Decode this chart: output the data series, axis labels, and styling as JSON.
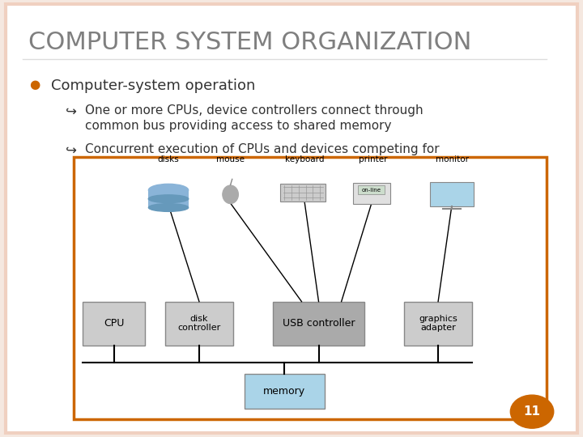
{
  "title": "COMPUTER SYSTEM ORGANIZATION",
  "title_color": "#7f7f7f",
  "title_fontsize": 22,
  "bg_color": "#ffffff",
  "border_color": "#f0d0c0",
  "slide_bg": "#f5e8e0",
  "bullet1_text": "Computer-system operation",
  "bullet2_text": "One or more CPUs, device controllers connect through\ncommon bus providing access to shared memory",
  "bullet3_text": "Concurrent execution of CPUs and devices competing for",
  "bullet_color": "#cc6600",
  "text_color": "#333333",
  "diagram_border": "#cc6600",
  "box_fill": "#cccccc",
  "memory_fill": "#aad4e8",
  "usb_fill": "#aaaaaa",
  "page_num": "11",
  "page_num_color": "#cc6600"
}
